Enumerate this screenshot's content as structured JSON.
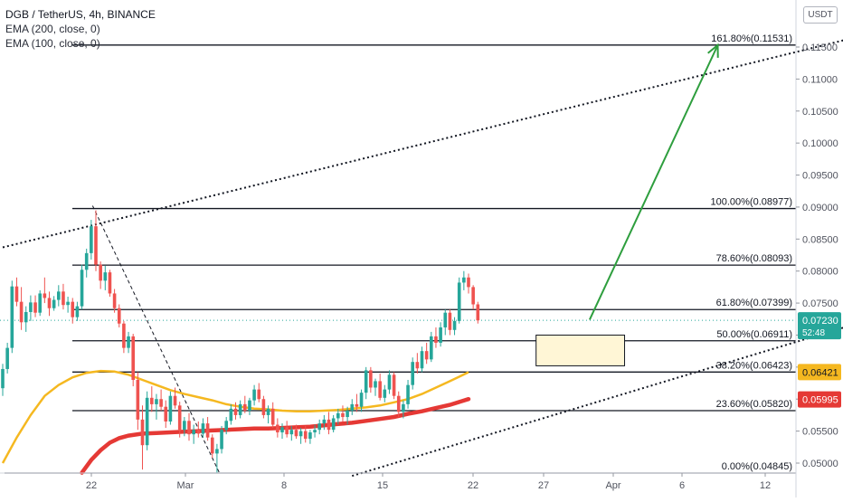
{
  "legend": {
    "symbol": "DGB / TetherUS, 4h, BINANCE",
    "ema200": "EMA (200, close, 0)",
    "ema100": "EMA (100, close, 0)"
  },
  "currency_button": "USDT",
  "colors": {
    "up": "#26a69a",
    "down": "#ef5350",
    "ema200": "#e53935",
    "ema100": "#f5b820",
    "fib": "#131722",
    "projection": "#2e9e3e",
    "zone_fill": "#fff6d6",
    "current_price_bg": "#26a69a"
  },
  "chart_data": {
    "type": "candlestick",
    "symbol": "DGB / TetherUS",
    "interval": "4h",
    "exchange": "BINANCE",
    "x_ticks": [
      "22",
      "Mar",
      "8",
      "15",
      "22",
      "27",
      "Apr",
      "6",
      "12"
    ],
    "y_ticks": [
      "0.11500",
      "0.11000",
      "0.10500",
      "0.10000",
      "0.09500",
      "0.09000",
      "0.08500",
      "0.08000",
      "0.07500",
      "0.07000",
      "0.06500",
      "0.06000",
      "0.05500",
      "0.05000"
    ],
    "y_range": [
      0.0485,
      0.1191
    ],
    "fib_levels": [
      {
        "label": "161.80%(0.11531)",
        "value": 0.11531
      },
      {
        "label": "100.00%(0.08977)",
        "value": 0.08977
      },
      {
        "label": "78.60%(0.08093)",
        "value": 0.08093
      },
      {
        "label": "61.80%(0.07399)",
        "value": 0.07399
      },
      {
        "label": "50.00%(0.06911)",
        "value": 0.06911
      },
      {
        "label": "38.20%(0.06423)",
        "value": 0.06423
      },
      {
        "label": "23.60%(0.05820)",
        "value": 0.0582
      },
      {
        "label": "0.00%(0.04845)",
        "value": 0.04845
      }
    ],
    "price_labels": [
      {
        "text": "0.07230",
        "sub": "52:48",
        "value": 0.0723,
        "role": "last"
      },
      {
        "text": "0.06421",
        "value": 0.06421,
        "role": "ema100"
      },
      {
        "text": "0.05995",
        "value": 0.05995,
        "role": "ema200"
      }
    ],
    "ohlc": [
      [
        0.0617,
        0.0655,
        0.0605,
        0.0647
      ],
      [
        0.0647,
        0.0688,
        0.064,
        0.068
      ],
      [
        0.068,
        0.0785,
        0.0672,
        0.0776
      ],
      [
        0.0776,
        0.079,
        0.0745,
        0.0752
      ],
      [
        0.0752,
        0.0775,
        0.0708,
        0.072
      ],
      [
        0.072,
        0.0745,
        0.0705,
        0.0736
      ],
      [
        0.0736,
        0.0762,
        0.0722,
        0.0751
      ],
      [
        0.0751,
        0.0762,
        0.0728,
        0.0735
      ],
      [
        0.0735,
        0.077,
        0.073,
        0.0765
      ],
      [
        0.0765,
        0.079,
        0.075,
        0.0758
      ],
      [
        0.0758,
        0.0768,
        0.073,
        0.0742
      ],
      [
        0.0742,
        0.0761,
        0.0738,
        0.0755
      ],
      [
        0.0755,
        0.0778,
        0.0745,
        0.0768
      ],
      [
        0.0768,
        0.078,
        0.074,
        0.0747
      ],
      [
        0.0747,
        0.076,
        0.0735,
        0.0752
      ],
      [
        0.0752,
        0.0758,
        0.0718,
        0.0728
      ],
      [
        0.0728,
        0.0752,
        0.0722,
        0.0745
      ],
      [
        0.0745,
        0.081,
        0.074,
        0.0802
      ],
      [
        0.0802,
        0.0835,
        0.079,
        0.0828
      ],
      [
        0.0828,
        0.088,
        0.0818,
        0.087
      ],
      [
        0.087,
        0.0895,
        0.08,
        0.081
      ],
      [
        0.081,
        0.0815,
        0.0772,
        0.0785
      ],
      [
        0.0785,
        0.0808,
        0.077,
        0.0798
      ],
      [
        0.0798,
        0.0802,
        0.076,
        0.0765
      ],
      [
        0.0765,
        0.0772,
        0.0735,
        0.0742
      ],
      [
        0.0742,
        0.0748,
        0.0712,
        0.0718
      ],
      [
        0.0718,
        0.0722,
        0.0672,
        0.068
      ],
      [
        0.068,
        0.0705,
        0.0672,
        0.0698
      ],
      [
        0.0698,
        0.0702,
        0.062,
        0.063
      ],
      [
        0.063,
        0.0642,
        0.0552,
        0.0568
      ],
      [
        0.0568,
        0.059,
        0.049,
        0.0528
      ],
      [
        0.0528,
        0.0612,
        0.052,
        0.0602
      ],
      [
        0.0602,
        0.062,
        0.058,
        0.0592
      ],
      [
        0.0592,
        0.0608,
        0.0568,
        0.06
      ],
      [
        0.06,
        0.0615,
        0.0582,
        0.0588
      ],
      [
        0.0588,
        0.0598,
        0.0555,
        0.0565
      ],
      [
        0.0565,
        0.0612,
        0.056,
        0.0605
      ],
      [
        0.0605,
        0.0618,
        0.0585,
        0.059
      ],
      [
        0.059,
        0.0596,
        0.054,
        0.0552
      ],
      [
        0.0552,
        0.0572,
        0.0542,
        0.0566
      ],
      [
        0.0566,
        0.0578,
        0.0535,
        0.0545
      ],
      [
        0.0545,
        0.056,
        0.053,
        0.0552
      ],
      [
        0.0552,
        0.0565,
        0.054,
        0.0546
      ],
      [
        0.0546,
        0.057,
        0.054,
        0.0562
      ],
      [
        0.0562,
        0.0572,
        0.0535,
        0.054
      ],
      [
        0.054,
        0.0545,
        0.0508,
        0.0515
      ],
      [
        0.0515,
        0.053,
        0.0485,
        0.0522
      ],
      [
        0.0522,
        0.0558,
        0.0515,
        0.0552
      ],
      [
        0.0552,
        0.0572,
        0.0545,
        0.0566
      ],
      [
        0.0566,
        0.0592,
        0.056,
        0.0585
      ],
      [
        0.0585,
        0.0595,
        0.0568,
        0.0575
      ],
      [
        0.0575,
        0.0598,
        0.057,
        0.0592
      ],
      [
        0.0592,
        0.0605,
        0.0578,
        0.0582
      ],
      [
        0.0582,
        0.0602,
        0.0575,
        0.0598
      ],
      [
        0.0598,
        0.0622,
        0.059,
        0.0615
      ],
      [
        0.0615,
        0.0625,
        0.0595,
        0.06
      ],
      [
        0.06,
        0.0605,
        0.057,
        0.0575
      ],
      [
        0.0575,
        0.059,
        0.0562,
        0.0585
      ],
      [
        0.0585,
        0.0595,
        0.0555,
        0.056
      ],
      [
        0.056,
        0.057,
        0.054,
        0.0548
      ],
      [
        0.0548,
        0.0562,
        0.0538,
        0.0556
      ],
      [
        0.0556,
        0.0566,
        0.054,
        0.0545
      ],
      [
        0.0545,
        0.0558,
        0.0535,
        0.0552
      ],
      [
        0.0552,
        0.056,
        0.0538,
        0.0542
      ],
      [
        0.0542,
        0.0555,
        0.053,
        0.055
      ],
      [
        0.055,
        0.0558,
        0.0532,
        0.0538
      ],
      [
        0.0538,
        0.0552,
        0.053,
        0.0548
      ],
      [
        0.0548,
        0.056,
        0.054,
        0.0552
      ],
      [
        0.0552,
        0.0568,
        0.0545,
        0.0562
      ],
      [
        0.0562,
        0.0575,
        0.0552,
        0.0568
      ],
      [
        0.0568,
        0.058,
        0.0545,
        0.0552
      ],
      [
        0.0552,
        0.0575,
        0.0548,
        0.057
      ],
      [
        0.057,
        0.0585,
        0.056,
        0.0578
      ],
      [
        0.0578,
        0.059,
        0.0565,
        0.0572
      ],
      [
        0.0572,
        0.0588,
        0.056,
        0.0582
      ],
      [
        0.0582,
        0.06,
        0.0575,
        0.0592
      ],
      [
        0.0592,
        0.0608,
        0.058,
        0.0588
      ],
      [
        0.0588,
        0.0615,
        0.058,
        0.061
      ],
      [
        0.061,
        0.065,
        0.06,
        0.0645
      ],
      [
        0.0645,
        0.065,
        0.061,
        0.0618
      ],
      [
        0.0618,
        0.0632,
        0.0605,
        0.0628
      ],
      [
        0.0628,
        0.064,
        0.0598,
        0.0602
      ],
      [
        0.0602,
        0.0622,
        0.0595,
        0.0615
      ],
      [
        0.0615,
        0.0645,
        0.0608,
        0.0638
      ],
      [
        0.0638,
        0.0642,
        0.06,
        0.0605
      ],
      [
        0.0605,
        0.0612,
        0.0572,
        0.058
      ],
      [
        0.058,
        0.0598,
        0.057,
        0.0592
      ],
      [
        0.0592,
        0.063,
        0.0585,
        0.0622
      ],
      [
        0.0622,
        0.0665,
        0.0615,
        0.0658
      ],
      [
        0.0658,
        0.0672,
        0.064,
        0.0648
      ],
      [
        0.0648,
        0.0682,
        0.0642,
        0.0675
      ],
      [
        0.0675,
        0.0688,
        0.0655,
        0.0662
      ],
      [
        0.0662,
        0.0705,
        0.0658,
        0.0698
      ],
      [
        0.0698,
        0.0712,
        0.068,
        0.0688
      ],
      [
        0.0688,
        0.072,
        0.0682,
        0.0712
      ],
      [
        0.0712,
        0.074,
        0.07,
        0.0735
      ],
      [
        0.0735,
        0.074,
        0.07,
        0.0708
      ],
      [
        0.0708,
        0.0728,
        0.07,
        0.0722
      ],
      [
        0.0722,
        0.079,
        0.0718,
        0.0782
      ],
      [
        0.0782,
        0.08,
        0.077,
        0.079
      ],
      [
        0.079,
        0.0796,
        0.0765,
        0.0775
      ],
      [
        0.0775,
        0.0778,
        0.074,
        0.0748
      ],
      [
        0.0748,
        0.0752,
        0.0718,
        0.0723
      ]
    ],
    "ema100": [
      [
        0,
        0.05
      ],
      [
        3,
        0.054
      ],
      [
        6,
        0.0575
      ],
      [
        9,
        0.0605
      ],
      [
        12,
        0.0622
      ],
      [
        15,
        0.0634
      ],
      [
        18,
        0.0641
      ],
      [
        21,
        0.0644
      ],
      [
        24,
        0.0643
      ],
      [
        27,
        0.0638
      ],
      [
        30,
        0.063
      ],
      [
        33,
        0.0622
      ],
      [
        36,
        0.0614
      ],
      [
        39,
        0.0608
      ],
      [
        42,
        0.0603
      ],
      [
        45,
        0.0598
      ],
      [
        48,
        0.0592
      ],
      [
        51,
        0.0588
      ],
      [
        54,
        0.0585
      ],
      [
        57,
        0.0584
      ],
      [
        60,
        0.0582
      ],
      [
        63,
        0.0581
      ],
      [
        66,
        0.0581
      ],
      [
        69,
        0.0582
      ],
      [
        72,
        0.0583
      ],
      [
        75,
        0.0585
      ],
      [
        78,
        0.0587
      ],
      [
        81,
        0.059
      ],
      [
        84,
        0.0595
      ],
      [
        87,
        0.06
      ],
      [
        90,
        0.0608
      ],
      [
        93,
        0.0618
      ],
      [
        96,
        0.0628
      ],
      [
        100,
        0.0642
      ]
    ],
    "ema200": [
      [
        17,
        0.0485
      ],
      [
        19,
        0.0505
      ],
      [
        21,
        0.052
      ],
      [
        23,
        0.0532
      ],
      [
        25,
        0.0539
      ],
      [
        27,
        0.0543
      ],
      [
        30,
        0.0546
      ],
      [
        33,
        0.0547
      ],
      [
        36,
        0.0548
      ],
      [
        39,
        0.0549
      ],
      [
        42,
        0.055
      ],
      [
        45,
        0.0551
      ],
      [
        48,
        0.0552
      ],
      [
        51,
        0.0553
      ],
      [
        54,
        0.0554
      ],
      [
        57,
        0.0554
      ],
      [
        60,
        0.0555
      ],
      [
        63,
        0.0556
      ],
      [
        66,
        0.0557
      ],
      [
        69,
        0.0559
      ],
      [
        72,
        0.0561
      ],
      [
        75,
        0.0563
      ],
      [
        78,
        0.0566
      ],
      [
        81,
        0.0569
      ],
      [
        84,
        0.0572
      ],
      [
        87,
        0.0577
      ],
      [
        90,
        0.0581
      ],
      [
        93,
        0.0586
      ],
      [
        96,
        0.0591
      ],
      [
        100,
        0.06
      ]
    ],
    "upper_channel": [
      [
        0.0,
        0.0837
      ],
      [
        207.0,
        0.1208
      ]
    ],
    "lower_channel": [
      [
        75.0,
        0.048
      ],
      [
        197.5,
        0.0749
      ]
    ],
    "dashed_downtrend": [
      [
        19.3,
        0.0902
      ],
      [
        46.5,
        0.0485
      ]
    ],
    "projection_arrow": [
      [
        126.0,
        0.0724
      ],
      [
        153.5,
        0.1153
      ]
    ],
    "target_zone": {
      "x": [
        114.5,
        133.5
      ],
      "y": [
        0.0652,
        0.07
      ]
    }
  }
}
